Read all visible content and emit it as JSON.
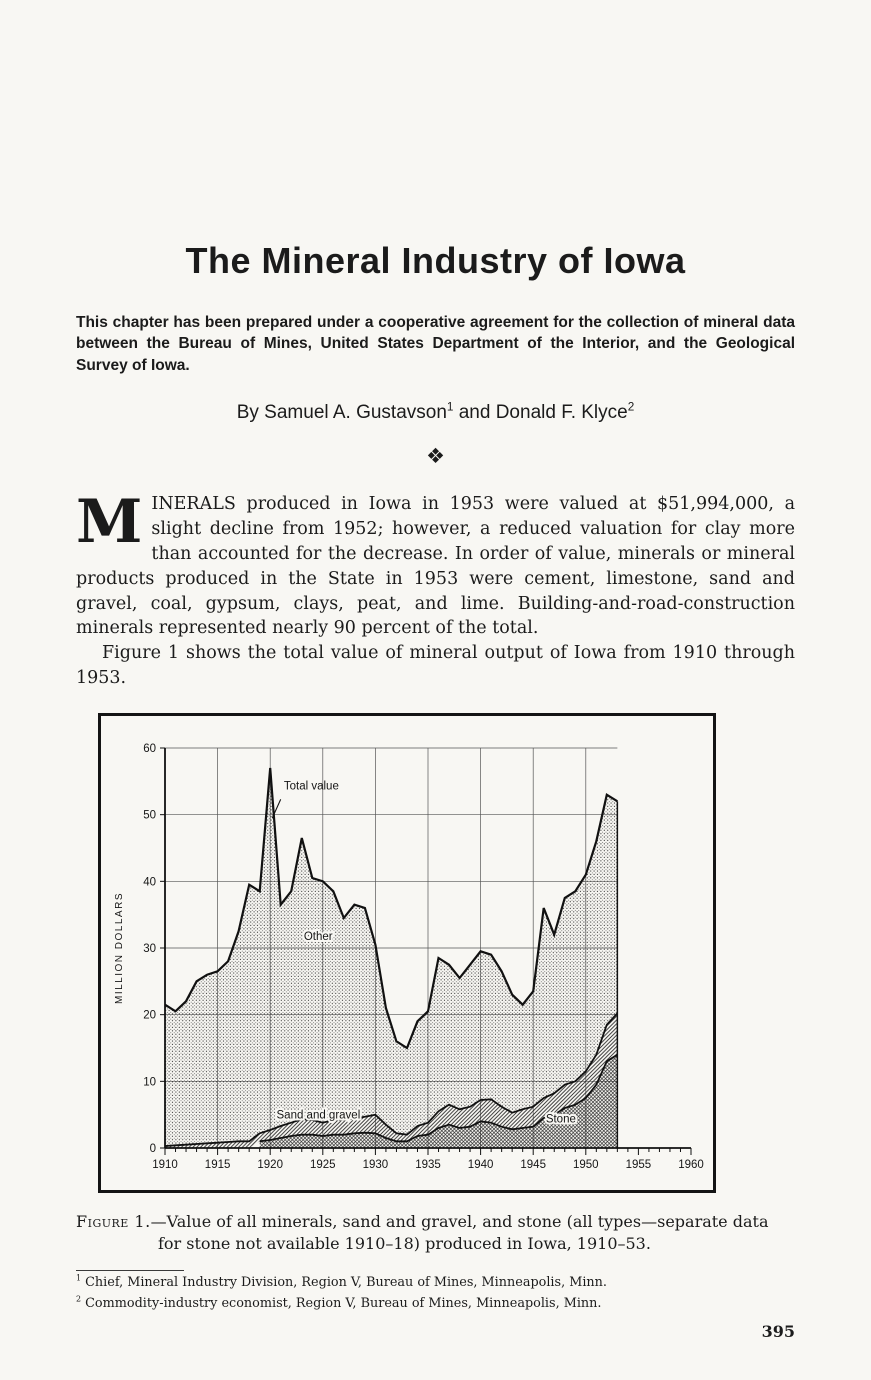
{
  "page": {
    "title": "The Mineral Industry of Iowa",
    "intro": "This chapter has been prepared under a cooperative agreement for the collection of mineral data between the Bureau of Mines, United States Department of the Interior, and the Geological Survey of Iowa.",
    "byline": {
      "prefix": "By Samuel A. Gustavson",
      "sup1": "1",
      "mid": " and Donald F. Klyce",
      "sup2": "2"
    },
    "ornament": "❖",
    "body": {
      "dropcap": "M",
      "para1": "INERALS produced in Iowa in 1953 were valued at $51,994,000, a slight decline from 1952; however, a reduced valuation for clay more than accounted for the decrease.  In order of value, minerals or mineral products produced in the State in 1953 were cement, limestone, sand and gravel, coal, gypsum, clays, peat, and lime.  Building-and-road-construction minerals represented nearly 90 percent of the total.",
      "para2": "Figure 1 shows the total value of mineral output of Iowa from 1910 through 1953."
    },
    "figure_caption": {
      "label": "Figure 1.",
      "rest": "—Value of all minerals, sand and gravel, and stone (all types—separate data for stone not available 1910–18) produced in Iowa, 1910–53."
    },
    "footnotes": [
      {
        "sup": "1",
        "text": " Chief, Mineral Industry Division, Region V, Bureau of Mines, Minneapolis, Minn."
      },
      {
        "sup": "2",
        "text": " Commodity-industry economist, Region V, Bureau of Mines, Minneapolis, Minn."
      }
    ],
    "page_number": "395"
  },
  "chart_data": {
    "type": "area",
    "title": "",
    "xlabel": "",
    "ylabel": "MILLION DOLLARS",
    "unit": "million dollars",
    "xlim": [
      1910,
      1960
    ],
    "ylim": [
      0,
      60
    ],
    "x_major_ticks": [
      1910,
      1915,
      1920,
      1925,
      1930,
      1935,
      1940,
      1945,
      1950,
      1955,
      1960
    ],
    "x_minor_step": 1,
    "y_ticks": [
      0,
      10,
      20,
      30,
      40,
      50,
      60
    ],
    "grid": true,
    "grid_end_x": 1953,
    "legend_position": "none",
    "stacked_order": [
      "Stone",
      "Sand and gravel"
    ],
    "years": [
      1910,
      1911,
      1912,
      1913,
      1914,
      1915,
      1916,
      1917,
      1918,
      1919,
      1920,
      1921,
      1922,
      1923,
      1924,
      1925,
      1926,
      1927,
      1928,
      1929,
      1930,
      1931,
      1932,
      1933,
      1934,
      1935,
      1936,
      1937,
      1938,
      1939,
      1940,
      1941,
      1942,
      1943,
      1944,
      1945,
      1946,
      1947,
      1948,
      1949,
      1950,
      1951,
      1952,
      1953
    ],
    "series": [
      {
        "name": "Stone",
        "fill_style": "crosshatch",
        "values": [
          null,
          null,
          null,
          null,
          null,
          null,
          null,
          null,
          null,
          1.0,
          1.2,
          1.5,
          1.8,
          2.0,
          2.0,
          1.8,
          2.0,
          2.0,
          2.2,
          2.3,
          2.2,
          1.5,
          1.0,
          1.0,
          1.8,
          2.0,
          3.0,
          3.5,
          3.0,
          3.2,
          4.0,
          3.8,
          3.2,
          2.8,
          3.0,
          3.2,
          4.5,
          5.0,
          6.0,
          6.5,
          7.5,
          9.5,
          13.0,
          14.0
        ]
      },
      {
        "name": "Sand and gravel",
        "fill_style": "diagonal-hatch",
        "values": [
          0.3,
          0.4,
          0.5,
          0.6,
          0.7,
          0.8,
          0.9,
          1.0,
          1.0,
          1.2,
          1.5,
          1.8,
          2.0,
          2.3,
          2.2,
          2.0,
          2.2,
          2.3,
          2.2,
          2.4,
          2.8,
          2.0,
          1.2,
          1.0,
          1.5,
          1.8,
          2.5,
          3.0,
          2.8,
          3.0,
          3.2,
          3.5,
          3.0,
          2.5,
          2.8,
          3.0,
          3.0,
          3.2,
          3.5,
          3.5,
          4.0,
          4.5,
          5.5,
          6.2
        ]
      },
      {
        "name": "Total value",
        "fill_style": "stipple-dots-between-total-and-bands",
        "values": [
          21.5,
          20.5,
          22,
          25,
          26,
          26.5,
          28,
          32.5,
          39.5,
          38.5,
          57,
          36.5,
          38.5,
          46.5,
          40.5,
          40,
          38.5,
          34.5,
          36.5,
          36,
          30.5,
          21,
          16,
          15,
          19,
          20.5,
          28.5,
          27.5,
          25.5,
          27.5,
          29.5,
          29,
          26.5,
          23,
          21.5,
          23.5,
          36,
          32,
          37.5,
          38.5,
          41,
          46,
          53,
          52
        ]
      }
    ],
    "annotations": [
      {
        "text": "Total value",
        "x": 1921.3,
        "y": 53.8,
        "halo": false,
        "leader": [
          [
            1921.0,
            52.3
          ],
          [
            1920.2,
            49.5
          ]
        ]
      },
      {
        "text": "Other",
        "x": 1923.2,
        "y": 31.2,
        "halo": true
      },
      {
        "text": "Sand and gravel",
        "x": 1920.6,
        "y": 4.4,
        "halo": true
      },
      {
        "text": "Stone",
        "x": 1946.2,
        "y": 3.8,
        "halo": true
      }
    ]
  }
}
